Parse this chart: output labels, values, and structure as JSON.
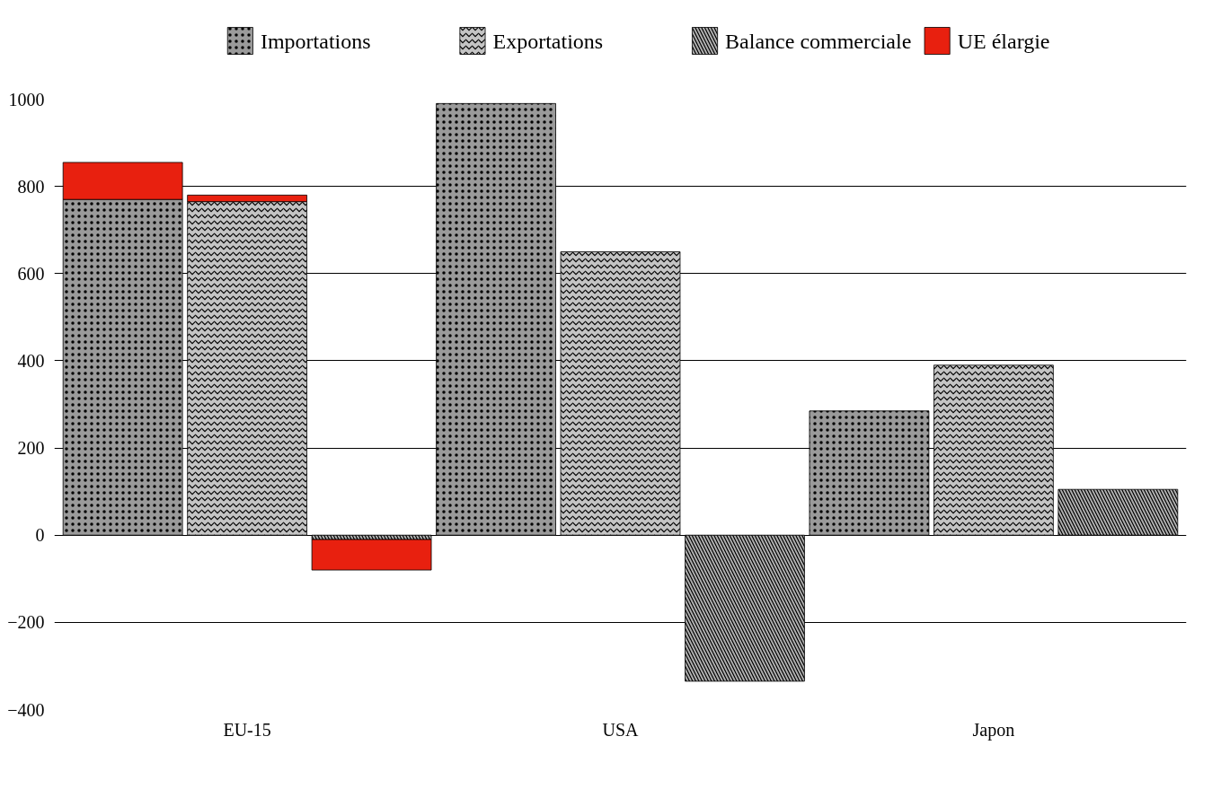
{
  "chart_data": {
    "type": "bar",
    "stacked": true,
    "categories": [
      null,
      "EU-15",
      null,
      null,
      "USA",
      null,
      null,
      "Japon",
      null
    ],
    "series": [
      {
        "name": "Importations",
        "color": "#9a9a9a",
        "values": [
          770,
          null,
          null,
          990,
          null,
          null,
          285,
          null,
          null
        ]
      },
      {
        "name": "Exportations",
        "color": "#c4c4c4",
        "values": [
          null,
          765,
          null,
          null,
          650,
          null,
          null,
          390,
          null
        ]
      },
      {
        "name": "Balance commerciale",
        "color": "#afafaf",
        "values": [
          null,
          null,
          -10,
          null,
          null,
          -335,
          null,
          null,
          105
        ]
      },
      {
        "name": "UE élargie",
        "color": "#e8200f",
        "values": [
          85,
          15,
          -70,
          null,
          null,
          null,
          null,
          null,
          null
        ]
      }
    ],
    "ylim": [
      -400,
      1000
    ],
    "yticks": [
      -400,
      -200,
      0,
      200,
      400,
      600,
      800,
      1000
    ],
    "grid": "y",
    "legend": "top"
  }
}
